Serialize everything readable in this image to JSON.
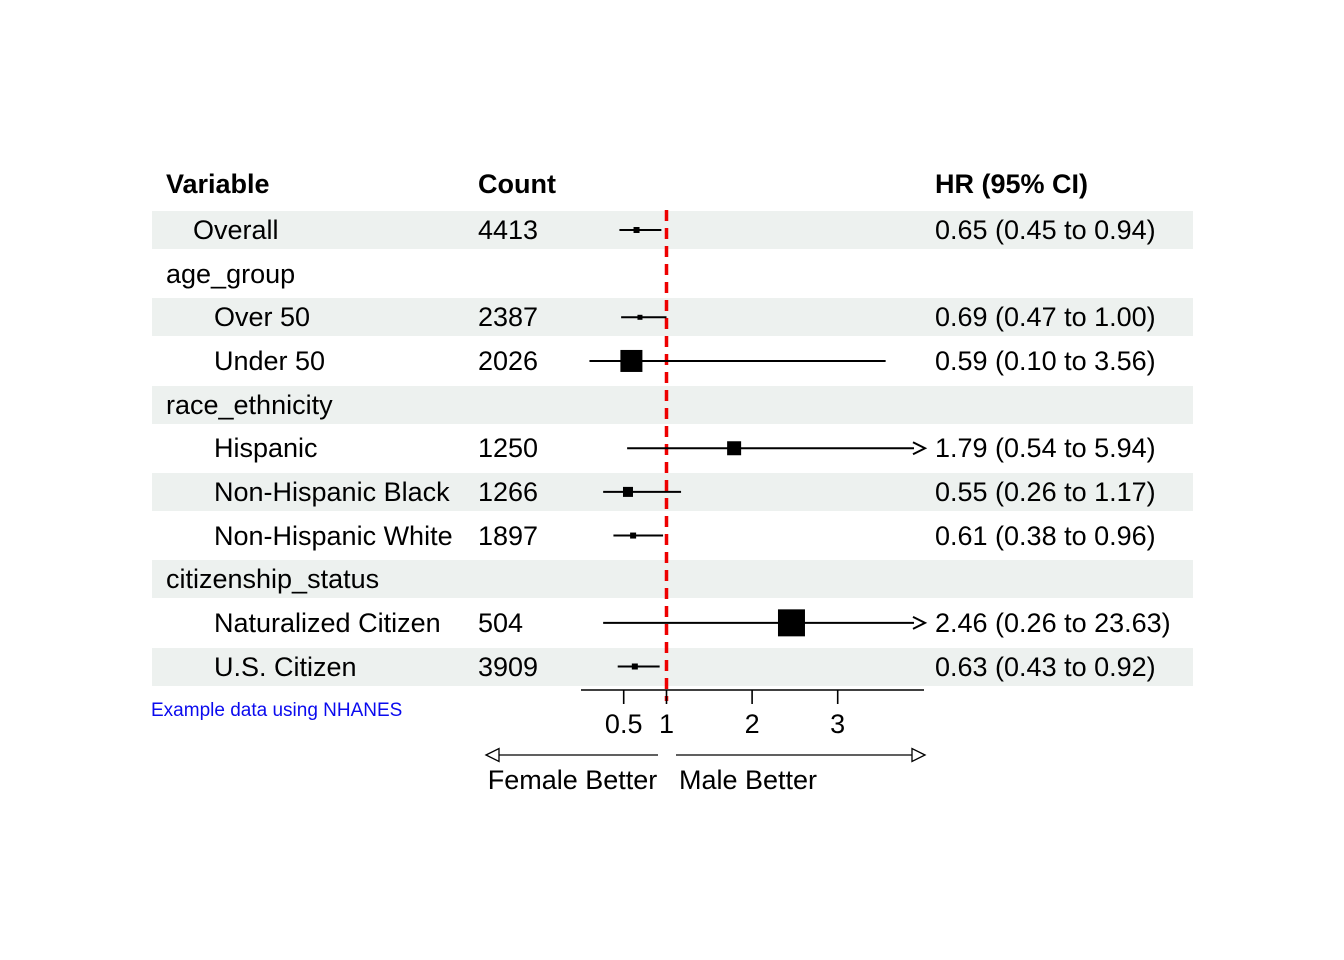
{
  "chart_data": {
    "type": "forest",
    "header": {
      "variable": "Variable",
      "count": "Count",
      "hr": "HR (95% CI)"
    },
    "axis": {
      "scale": "linear",
      "xlim": [
        0,
        4
      ],
      "ticks": [
        "0.5",
        "1",
        "2",
        "3"
      ],
      "tick_values": [
        0.5,
        1,
        2,
        3
      ],
      "reference_line": 1,
      "left_direction_label": "Female Better",
      "right_direction_label": "Male Better"
    },
    "footnote": "Example data using NHANES",
    "colors": {
      "band": "#edf1ef",
      "reference_line": "#ee0000",
      "marker": "#000000",
      "ci_line": "#000000",
      "footnote": "#0b0bee"
    },
    "rows": [
      {
        "label": "Overall",
        "indent": 1,
        "count": "4413",
        "hr": 0.65,
        "lo": 0.45,
        "hi": 0.94,
        "hr_text": "0.65 (0.45 to 0.94)",
        "marker": 6,
        "shaded": true,
        "clipped": false
      },
      {
        "label": "age_group",
        "indent": 0,
        "shaded": false,
        "group": true
      },
      {
        "label": "Over 50",
        "indent": 2,
        "count": "2387",
        "hr": 0.69,
        "lo": 0.47,
        "hi": 1.0,
        "hr_text": "0.69 (0.47 to 1.00)",
        "marker": 5,
        "shaded": true,
        "clipped": false
      },
      {
        "label": "Under 50",
        "indent": 2,
        "count": "2026",
        "hr": 0.59,
        "lo": 0.1,
        "hi": 3.56,
        "hr_text": "0.59 (0.10 to 3.56)",
        "marker": 22,
        "shaded": false,
        "clipped": false
      },
      {
        "label": "race_ethnicity",
        "indent": 0,
        "shaded": true,
        "group": true
      },
      {
        "label": "Hispanic",
        "indent": 2,
        "count": "1250",
        "hr": 1.79,
        "lo": 0.54,
        "hi": 5.94,
        "hr_text": "1.79 (0.54 to 5.94)",
        "marker": 14,
        "shaded": false,
        "clipped": true
      },
      {
        "label": "Non-Hispanic Black",
        "indent": 2,
        "count": "1266",
        "hr": 0.55,
        "lo": 0.26,
        "hi": 1.17,
        "hr_text": "0.55 (0.26 to 1.17)",
        "marker": 10,
        "shaded": true,
        "clipped": false
      },
      {
        "label": "Non-Hispanic White",
        "indent": 2,
        "count": "1897",
        "hr": 0.61,
        "lo": 0.38,
        "hi": 0.96,
        "hr_text": "0.61 (0.38 to 0.96)",
        "marker": 6,
        "shaded": false,
        "clipped": false
      },
      {
        "label": "citizenship_status",
        "indent": 0,
        "shaded": true,
        "group": true
      },
      {
        "label": "Naturalized Citizen",
        "indent": 2,
        "count": "504",
        "hr": 2.46,
        "lo": 0.26,
        "hi": 23.63,
        "hr_text": "2.46 (0.26 to 23.63)",
        "marker": 27,
        "shaded": false,
        "clipped": true
      },
      {
        "label": "U.S. Citizen",
        "indent": 2,
        "count": "3909",
        "hr": 0.63,
        "lo": 0.43,
        "hi": 0.92,
        "hr_text": "0.63 (0.43 to 0.92)",
        "marker": 6,
        "shaded": true,
        "clipped": false
      }
    ]
  }
}
